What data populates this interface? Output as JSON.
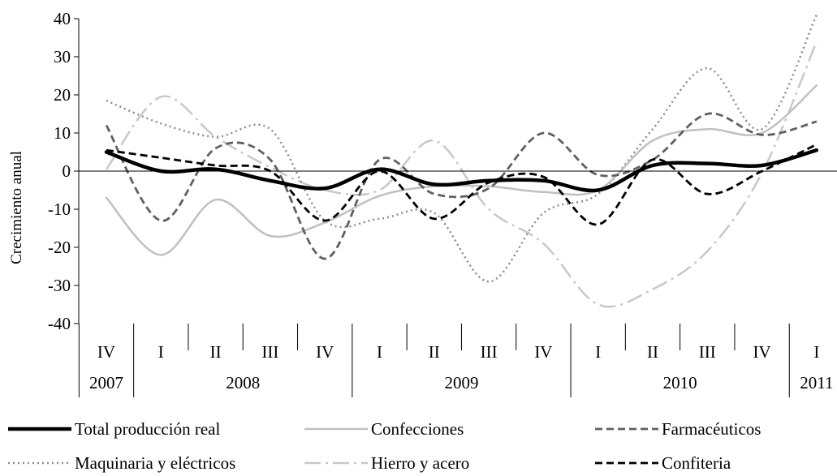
{
  "chart_data": {
    "type": "line",
    "ylabel": "Crecimiento  anual",
    "ylim": [
      -40,
      40
    ],
    "yticks": [
      40,
      30,
      20,
      10,
      0,
      -10,
      -20,
      -30,
      -40
    ],
    "grid": false,
    "legend_position": "bottom",
    "quarters": [
      "IV",
      "I",
      "II",
      "III",
      "IV",
      "I",
      "II",
      "III",
      "IV",
      "I",
      "II",
      "III",
      "IV",
      "I"
    ],
    "years": [
      {
        "label": "2007",
        "span": 1
      },
      {
        "label": "2008",
        "span": 4
      },
      {
        "label": "2009",
        "span": 4
      },
      {
        "label": "2010",
        "span": 4
      },
      {
        "label": "2011",
        "span": 1
      }
    ],
    "series": [
      {
        "name": "Total producción real",
        "key": "total",
        "color": "#000000",
        "dash": "",
        "width": 4.5,
        "values": [
          5,
          0,
          0.5,
          -2.5,
          -4.5,
          0.5,
          -3.5,
          -2.5,
          -2.5,
          -5,
          1.5,
          2,
          1.5,
          5.5
        ]
      },
      {
        "name": "Confecciones",
        "key": "confecciones",
        "color": "#c0c0c0",
        "dash": "",
        "width": 2.5,
        "values": [
          -7,
          -22,
          -7.5,
          -17,
          -13.5,
          -6.5,
          -4,
          -4,
          -5.5,
          -5,
          8,
          11,
          10,
          22.5
        ]
      },
      {
        "name": "Farmacéuticos",
        "key": "farmaceuticos",
        "color": "#606060",
        "dash": "9,5",
        "width": 2.8,
        "values": [
          12,
          -13,
          6,
          3,
          -23,
          3,
          -6,
          -4.5,
          10,
          -1,
          3,
          15,
          9.5,
          13
        ]
      },
      {
        "name": "Maquinaria  y eléctricos",
        "key": "maquinaria",
        "color": "#8c8c8c",
        "dash": "2,4",
        "width": 2.5,
        "values": [
          18.5,
          12.5,
          9,
          11,
          -13,
          -12.5,
          -11,
          -29,
          -11,
          -6,
          11,
          27,
          11,
          41
        ]
      },
      {
        "name": "Hierro y acero",
        "key": "hierro",
        "color": "#c8c8c8",
        "dash": "20,6,3,6",
        "width": 2.5,
        "values": [
          0.5,
          19.5,
          9,
          1,
          -5,
          -5,
          8,
          -10,
          -19,
          -35,
          -31,
          -21,
          -0.5,
          34
        ]
      },
      {
        "name": "Confiteria",
        "key": "confiteria",
        "color": "#000000",
        "dash": "9,5",
        "width": 2.8,
        "values": [
          5.5,
          3.5,
          1.5,
          0,
          -13,
          0,
          -12.5,
          -3,
          -1.5,
          -14,
          3,
          -6,
          0,
          7
        ]
      }
    ]
  }
}
